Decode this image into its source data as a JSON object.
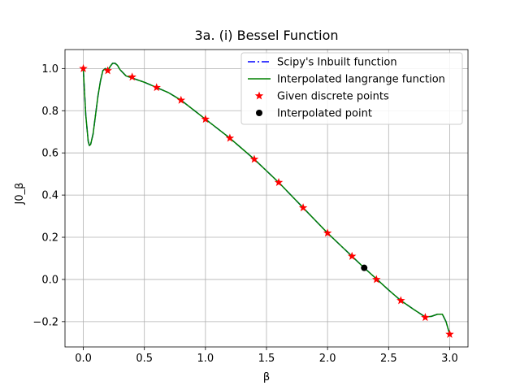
{
  "chart_data": {
    "type": "line",
    "title": "3a. (i) Bessel Function",
    "xlabel": "β",
    "ylabel": "J0_β",
    "xlim": [
      -0.15,
      3.15
    ],
    "ylim": [
      -0.32,
      1.09
    ],
    "xticks": [
      0.0,
      0.5,
      1.0,
      1.5,
      2.0,
      2.5,
      3.0
    ],
    "xtick_labels": [
      "0.0",
      "0.5",
      "1.0",
      "1.5",
      "2.0",
      "2.5",
      "3.0"
    ],
    "yticks": [
      -0.2,
      0.0,
      0.2,
      0.4,
      0.6,
      0.8,
      1.0
    ],
    "ytick_labels": [
      "−0.2",
      "0.0",
      "0.2",
      "0.4",
      "0.6",
      "0.8",
      "1.0"
    ],
    "grid": true,
    "legend_position": "top-right",
    "series": [
      {
        "name": "Scipy's Inbuilt function",
        "kind": "line",
        "style": "dashdot",
        "color": "#0000ff",
        "x": [
          0.0,
          0.02,
          0.04,
          0.05,
          0.06,
          0.08,
          0.1,
          0.12,
          0.14,
          0.16,
          0.18,
          0.2,
          0.22,
          0.24,
          0.26,
          0.28,
          0.3,
          0.35,
          0.4,
          0.5,
          0.6,
          0.7,
          0.8,
          0.9,
          1.0,
          1.1,
          1.2,
          1.3,
          1.4,
          1.5,
          1.6,
          1.7,
          1.8,
          1.9,
          2.0,
          2.1,
          2.2,
          2.3,
          2.4,
          2.5,
          2.6,
          2.7,
          2.8,
          2.85,
          2.9,
          2.94,
          2.97,
          3.0
        ],
        "y": [
          0.995,
          0.78,
          0.655,
          0.635,
          0.64,
          0.69,
          0.78,
          0.87,
          0.94,
          0.99,
          1.0,
          0.99,
          1.01,
          1.025,
          1.025,
          1.015,
          0.995,
          0.965,
          0.955,
          0.935,
          0.91,
          0.885,
          0.85,
          0.805,
          0.76,
          0.715,
          0.67,
          0.62,
          0.57,
          0.515,
          0.46,
          0.4,
          0.34,
          0.28,
          0.22,
          0.165,
          0.11,
          0.055,
          0.003,
          -0.05,
          -0.1,
          -0.14,
          -0.178,
          -0.175,
          -0.165,
          -0.165,
          -0.2,
          -0.26
        ]
      },
      {
        "name": "Interpolated langrange function",
        "kind": "line",
        "style": "solid",
        "color": "#008000",
        "x": [
          0.0,
          0.02,
          0.04,
          0.05,
          0.06,
          0.08,
          0.1,
          0.12,
          0.14,
          0.16,
          0.18,
          0.2,
          0.22,
          0.24,
          0.26,
          0.28,
          0.3,
          0.35,
          0.4,
          0.5,
          0.6,
          0.7,
          0.8,
          0.9,
          1.0,
          1.1,
          1.2,
          1.3,
          1.4,
          1.5,
          1.6,
          1.7,
          1.8,
          1.9,
          2.0,
          2.1,
          2.2,
          2.3,
          2.4,
          2.5,
          2.6,
          2.7,
          2.8,
          2.85,
          2.9,
          2.94,
          2.97,
          3.0
        ],
        "y": [
          0.995,
          0.78,
          0.655,
          0.635,
          0.64,
          0.69,
          0.78,
          0.87,
          0.94,
          0.99,
          1.0,
          0.99,
          1.01,
          1.025,
          1.025,
          1.015,
          0.995,
          0.965,
          0.955,
          0.935,
          0.91,
          0.885,
          0.85,
          0.805,
          0.76,
          0.715,
          0.67,
          0.62,
          0.57,
          0.515,
          0.46,
          0.4,
          0.34,
          0.28,
          0.22,
          0.165,
          0.11,
          0.055,
          0.003,
          -0.05,
          -0.1,
          -0.14,
          -0.178,
          -0.175,
          -0.165,
          -0.165,
          -0.2,
          -0.26
        ]
      },
      {
        "name": "Given discrete points",
        "kind": "scatter",
        "marker": "star",
        "color": "#ff0000",
        "x": [
          0.0,
          0.2,
          0.4,
          0.6,
          0.8,
          1.0,
          1.2,
          1.4,
          1.6,
          1.8,
          2.0,
          2.2,
          2.4,
          2.6,
          2.8,
          3.0
        ],
        "y": [
          1.0,
          0.99,
          0.96,
          0.91,
          0.85,
          0.76,
          0.67,
          0.57,
          0.46,
          0.34,
          0.22,
          0.11,
          0.0,
          -0.1,
          -0.18,
          -0.26
        ]
      },
      {
        "name": "Interpolated point",
        "kind": "scatter",
        "marker": "circle",
        "color": "#000000",
        "x": [
          2.3
        ],
        "y": [
          0.055
        ]
      }
    ]
  }
}
